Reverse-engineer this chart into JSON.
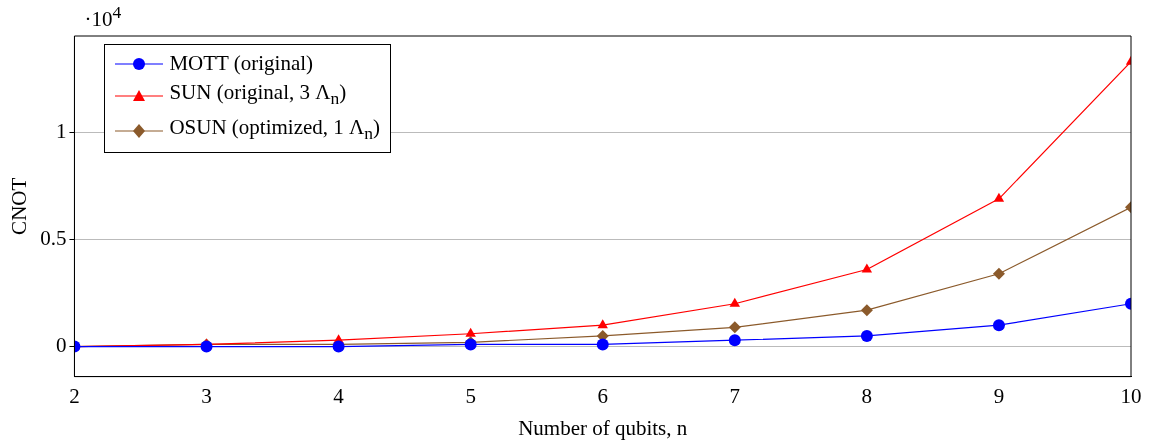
{
  "chart_data": {
    "type": "line",
    "xlabel": "Number of qubits, n",
    "ylabel": "CNOT",
    "x": [
      2,
      3,
      4,
      5,
      6,
      7,
      8,
      9,
      10
    ],
    "xlim": [
      2,
      10
    ],
    "xticks": [
      2,
      3,
      4,
      5,
      6,
      7,
      8,
      9,
      10
    ],
    "ylim": [
      -0.14,
      1.45
    ],
    "yticks": [
      0,
      0.5,
      1
    ],
    "annotations": [
      "·10$^{4}$"
    ],
    "grid": "y",
    "legend": "top left",
    "line_style": "solid",
    "series": [
      {
        "name": "MOTT (original)",
        "color": "#0000ff",
        "marker": "circle",
        "values": [
          0,
          0,
          0,
          0.01,
          0.01,
          0.03,
          0.05,
          0.1,
          0.2
        ]
      },
      {
        "name": "SUN (original, 3 Λ$_{n}$)",
        "color": "#ff0000",
        "marker": "triangle",
        "values": [
          0,
          0.01,
          0.03,
          0.06,
          0.1,
          0.2,
          0.36,
          0.69,
          1.33
        ]
      },
      {
        "name": "OSUN (optimized, 1 Λ$_{n}$)",
        "color": "#8b5a2b",
        "marker": "diamond",
        "values": [
          0,
          0.01,
          0.01,
          0.02,
          0.05,
          0.09,
          0.17,
          0.34,
          0.65
        ]
      }
    ]
  }
}
